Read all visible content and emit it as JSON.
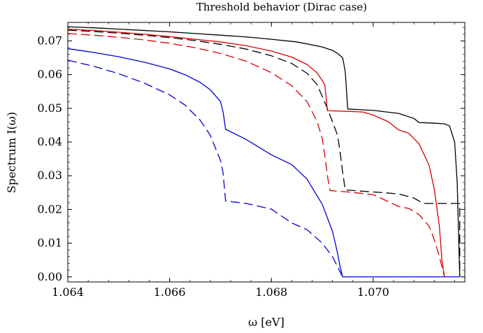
{
  "chart_data": {
    "type": "line",
    "title": "Threshold behavior (Dirac case)",
    "xlabel": "ω  [eV]",
    "ylabel": "Spectrum I(ω)",
    "xlim": [
      1.064,
      1.0718
    ],
    "ylim": [
      -0.0015,
      0.0755
    ],
    "xticks": [
      1.064,
      1.066,
      1.068,
      1.07
    ],
    "xtick_labels": [
      "1.064",
      "1.066",
      "1.068",
      "1.070"
    ],
    "yticks": [
      0.0,
      0.01,
      0.02,
      0.03,
      0.04,
      0.05,
      0.06,
      0.07
    ],
    "ytick_labels": [
      "0.00",
      "0.01",
      "0.02",
      "0.03",
      "0.04",
      "0.05",
      "0.06",
      "0.07"
    ],
    "grid": false,
    "frame": true,
    "series": [
      {
        "color": "#000000",
        "dash": "solid",
        "points": [
          [
            1.064,
            0.0742
          ],
          [
            1.0645,
            0.0739
          ],
          [
            1.065,
            0.0735
          ],
          [
            1.0655,
            0.0731
          ],
          [
            1.066,
            0.0727
          ],
          [
            1.0665,
            0.0722
          ],
          [
            1.067,
            0.0717
          ],
          [
            1.0675,
            0.0712
          ],
          [
            1.068,
            0.0705
          ],
          [
            1.0685,
            0.0697
          ],
          [
            1.069,
            0.0682
          ],
          [
            1.0692,
            0.0672
          ],
          [
            1.0693,
            0.0663
          ],
          [
            1.0694,
            0.065
          ],
          [
            1.06945,
            0.061
          ],
          [
            1.0695,
            0.0498
          ],
          [
            1.07,
            0.0494
          ],
          [
            1.0705,
            0.0485
          ],
          [
            1.0708,
            0.047
          ],
          [
            1.0709,
            0.0458
          ],
          [
            1.0712,
            0.0456
          ],
          [
            1.0714,
            0.0454
          ],
          [
            1.0715,
            0.0448
          ],
          [
            1.0716,
            0.04
          ],
          [
            1.07165,
            0.028
          ],
          [
            1.0717,
            0.0
          ]
        ]
      },
      {
        "color": "#000000",
        "dash": "long",
        "points": [
          [
            1.064,
            0.0732
          ],
          [
            1.0645,
            0.0728
          ],
          [
            1.065,
            0.0723
          ],
          [
            1.0655,
            0.0717
          ],
          [
            1.066,
            0.071
          ],
          [
            1.0665,
            0.0701
          ],
          [
            1.067,
            0.069
          ],
          [
            1.0675,
            0.0676
          ],
          [
            1.068,
            0.0656
          ],
          [
            1.0684,
            0.0633
          ],
          [
            1.0687,
            0.0604
          ],
          [
            1.0689,
            0.057
          ],
          [
            1.0691,
            0.05
          ],
          [
            1.0692,
            0.046
          ],
          [
            1.0693,
            0.042
          ],
          [
            1.06935,
            0.037
          ],
          [
            1.0694,
            0.031
          ],
          [
            1.06945,
            0.0258
          ],
          [
            1.0698,
            0.0254
          ],
          [
            1.0702,
            0.025
          ],
          [
            1.0705,
            0.0246
          ],
          [
            1.0708,
            0.0234
          ],
          [
            1.0709,
            0.0225
          ],
          [
            1.071,
            0.0218
          ],
          [
            1.0717,
            0.0218
          ],
          [
            1.0717,
            0.0
          ]
        ]
      },
      {
        "color": "#dd0000",
        "dash": "solid",
        "points": [
          [
            1.064,
            0.0735
          ],
          [
            1.0645,
            0.0731
          ],
          [
            1.065,
            0.0726
          ],
          [
            1.0655,
            0.072
          ],
          [
            1.066,
            0.0713
          ],
          [
            1.0665,
            0.0705
          ],
          [
            1.067,
            0.0697
          ],
          [
            1.0675,
            0.0686
          ],
          [
            1.068,
            0.067
          ],
          [
            1.0684,
            0.0652
          ],
          [
            1.0687,
            0.063
          ],
          [
            1.0689,
            0.0605
          ],
          [
            1.06905,
            0.057
          ],
          [
            1.0691,
            0.0493
          ],
          [
            1.0695,
            0.0491
          ],
          [
            1.0698,
            0.0489
          ],
          [
            1.07,
            0.048
          ],
          [
            1.0703,
            0.046
          ],
          [
            1.0705,
            0.0436
          ],
          [
            1.0707,
            0.0426
          ],
          [
            1.0709,
            0.0395
          ],
          [
            1.0711,
            0.033
          ],
          [
            1.0712,
            0.026
          ],
          [
            1.0713,
            0.015
          ],
          [
            1.07135,
            0.005
          ],
          [
            1.0714,
            0.0
          ]
        ]
      },
      {
        "color": "#dd0000",
        "dash": "long",
        "points": [
          [
            1.064,
            0.0722
          ],
          [
            1.0645,
            0.0717
          ],
          [
            1.065,
            0.0711
          ],
          [
            1.0655,
            0.0703
          ],
          [
            1.066,
            0.0693
          ],
          [
            1.0665,
            0.068
          ],
          [
            1.067,
            0.0663
          ],
          [
            1.0675,
            0.064
          ],
          [
            1.068,
            0.0606
          ],
          [
            1.0684,
            0.0567
          ],
          [
            1.0687,
            0.052
          ],
          [
            1.0689,
            0.046
          ],
          [
            1.069,
            0.041
          ],
          [
            1.06905,
            0.036
          ],
          [
            1.0691,
            0.03
          ],
          [
            1.06915,
            0.0256
          ],
          [
            1.0695,
            0.0252
          ],
          [
            1.07,
            0.0244
          ],
          [
            1.0705,
            0.0209
          ],
          [
            1.0707,
            0.0203
          ],
          [
            1.0709,
            0.0185
          ],
          [
            1.0711,
            0.015
          ],
          [
            1.0712,
            0.011
          ],
          [
            1.0713,
            0.006
          ],
          [
            1.0714,
            0.0
          ]
        ]
      },
      {
        "color": "#0000dd",
        "dash": "solid",
        "points": [
          [
            1.064,
            0.0677
          ],
          [
            1.0645,
            0.0666
          ],
          [
            1.065,
            0.0653
          ],
          [
            1.0655,
            0.0637
          ],
          [
            1.066,
            0.0617
          ],
          [
            1.0663,
            0.06
          ],
          [
            1.0666,
            0.0577
          ],
          [
            1.0668,
            0.0555
          ],
          [
            1.067,
            0.052
          ],
          [
            1.06705,
            0.049
          ],
          [
            1.0671,
            0.0438
          ],
          [
            1.0675,
            0.0408
          ],
          [
            1.068,
            0.0362
          ],
          [
            1.0684,
            0.0333
          ],
          [
            1.0687,
            0.029
          ],
          [
            1.069,
            0.0215
          ],
          [
            1.0692,
            0.0135
          ],
          [
            1.0693,
            0.007
          ],
          [
            1.06935,
            0.003
          ],
          [
            1.0694,
            0.0
          ],
          [
            1.0717,
            0.0
          ]
        ]
      },
      {
        "color": "#0000dd",
        "dash": "long",
        "points": [
          [
            1.064,
            0.0643
          ],
          [
            1.0645,
            0.0625
          ],
          [
            1.065,
            0.0603
          ],
          [
            1.0655,
            0.0575
          ],
          [
            1.066,
            0.054
          ],
          [
            1.0663,
            0.051
          ],
          [
            1.0666,
            0.0465
          ],
          [
            1.0668,
            0.042
          ],
          [
            1.067,
            0.0345
          ],
          [
            1.06705,
            0.031
          ],
          [
            1.0671,
            0.0225
          ],
          [
            1.0675,
            0.0218
          ],
          [
            1.068,
            0.0201
          ],
          [
            1.0684,
            0.016
          ],
          [
            1.0687,
            0.014
          ],
          [
            1.069,
            0.01
          ],
          [
            1.0692,
            0.006
          ],
          [
            1.0693,
            0.003
          ],
          [
            1.0694,
            0.0
          ]
        ]
      }
    ]
  }
}
